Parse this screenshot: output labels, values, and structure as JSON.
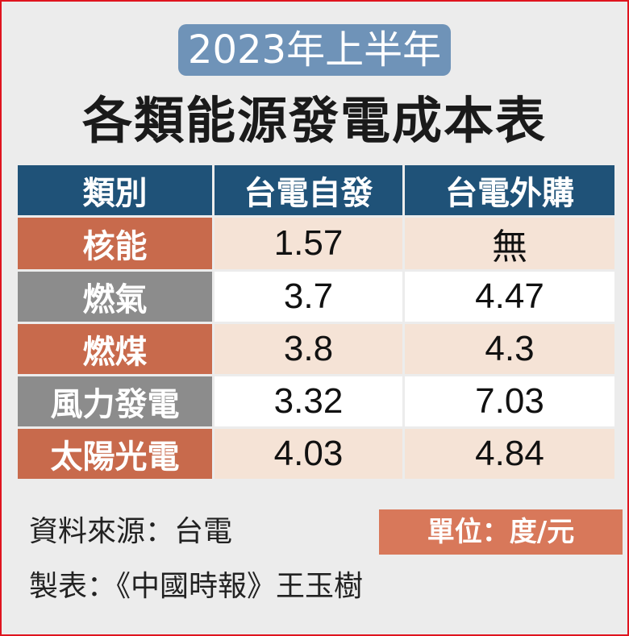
{
  "subtitle": "2023年上半年",
  "title": "各類能源發電成本表",
  "chart_data": {
    "type": "table",
    "columns": [
      "類別",
      "台電自發",
      "台電外購"
    ],
    "rows": [
      {
        "category": "核能",
        "self": "1.57",
        "purchased": "無"
      },
      {
        "category": "燃氣",
        "self": "3.7",
        "purchased": "4.47"
      },
      {
        "category": "燃煤",
        "self": "3.8",
        "purchased": "4.3"
      },
      {
        "category": "風力發電",
        "self": "3.32",
        "purchased": "7.03"
      },
      {
        "category": "太陽光電",
        "self": "4.03",
        "purchased": "4.84"
      }
    ],
    "unit": "單位：度/元"
  },
  "footer": {
    "source": "資料來源：台電",
    "maker": "製表：《中國時報》王玉樹"
  },
  "colors": {
    "header_bg": "#1f5278",
    "subtitle_bg": "#6f93b8",
    "category_orange": "#c86a4c",
    "category_gray": "#8c8c8c",
    "row_peach": "#f5e3d6",
    "row_white": "#ffffff",
    "unit_bg": "#d8785a",
    "border_red": "#e0141e"
  }
}
